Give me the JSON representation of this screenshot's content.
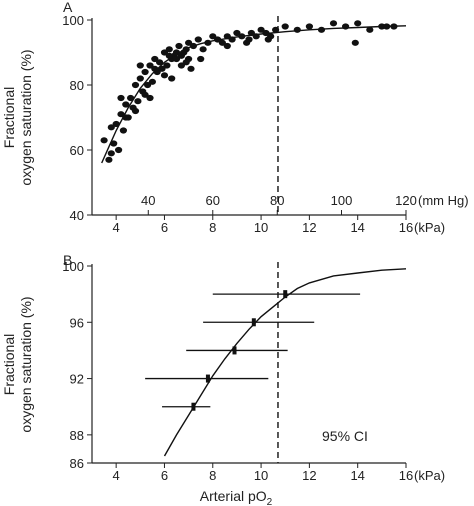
{
  "chart_data": [
    {
      "panel": "A",
      "type": "scatter",
      "ylabel_lines": [
        "Fractional",
        "oxygen saturation (%)"
      ],
      "ylim": [
        40,
        100
      ],
      "yticks": [
        40,
        60,
        80,
        100
      ],
      "xlim_kpa": [
        3,
        16
      ],
      "xticks_kpa": [
        4,
        6,
        8,
        10,
        12,
        14,
        16
      ],
      "xunit_kpa": "(kPa)",
      "mmhg_ticks": [
        {
          "label": "40",
          "kpa": 5.33
        },
        {
          "label": "60",
          "kpa": 8.0
        },
        {
          "label": "80",
          "kpa": 10.67
        },
        {
          "label": "100",
          "kpa": 13.33
        },
        {
          "label": "120",
          "kpa": 16.0
        }
      ],
      "mmhg_unit": "(mm Hg)",
      "reference_line_kpa": 10.7,
      "curve": {
        "x": [
          3.4,
          3.7,
          4.0,
          4.5,
          5.0,
          5.5,
          6.0,
          6.5,
          7.0,
          7.5,
          8.0,
          9.0,
          10.0,
          11.0,
          12.0,
          13.0,
          14.0,
          15.0,
          16.0
        ],
        "y": [
          56,
          61,
          66,
          73,
          79,
          83.5,
          87,
          89.5,
          91.5,
          92.7,
          93.6,
          94.8,
          95.7,
          96.4,
          97.0,
          97.4,
          97.7,
          98.0,
          98.2
        ]
      },
      "points": {
        "x": [
          3.5,
          3.7,
          3.8,
          3.9,
          4.0,
          4.1,
          4.2,
          4.3,
          4.4,
          4.5,
          4.6,
          4.7,
          4.8,
          4.9,
          5.0,
          5.1,
          5.2,
          5.3,
          5.4,
          5.5,
          5.6,
          5.7,
          5.8,
          5.9,
          6.0,
          6.1,
          6.2,
          6.3,
          6.4,
          6.5,
          6.6,
          6.7,
          6.8,
          6.9,
          7.0,
          7.2,
          7.4,
          7.6,
          7.8,
          8.0,
          8.2,
          8.4,
          8.6,
          8.8,
          9.0,
          9.2,
          9.4,
          9.6,
          9.8,
          10.0,
          10.2,
          10.4,
          10.6,
          11.0,
          11.5,
          12.0,
          12.5,
          13.0,
          13.5,
          14.0,
          14.5,
          15.0,
          15.5,
          3.8,
          4.4,
          4.8,
          5.2,
          5.6,
          6.0,
          6.3,
          6.7,
          7.1,
          7.5,
          4.2,
          5.0,
          5.4,
          6.2,
          7.0,
          6.9,
          8.6,
          9.5,
          10.3,
          13.9,
          15.2,
          6.5
        ],
        "y": [
          63,
          57,
          67,
          62,
          68,
          60,
          71,
          66,
          74,
          70,
          76,
          73,
          80,
          75,
          82,
          78,
          84,
          80,
          86,
          81,
          88,
          84,
          87,
          85,
          90,
          86,
          91,
          88,
          89,
          90,
          92,
          89,
          90,
          91,
          93,
          92,
          94,
          91,
          93,
          95,
          94,
          93,
          95,
          94,
          96,
          95,
          93,
          96,
          95,
          97,
          96,
          95,
          97,
          98,
          97,
          98,
          97,
          99,
          98,
          99,
          97,
          98,
          98,
          59,
          70,
          72,
          77,
          85,
          83,
          82,
          86,
          85,
          88,
          76,
          86,
          76,
          89,
          88,
          87,
          92,
          94,
          94,
          93,
          98,
          88
        ]
      }
    },
    {
      "panel": "B",
      "type": "scatter",
      "ylabel_lines": [
        "Fractional",
        "oxygen saturation (%)"
      ],
      "ylim": [
        86,
        100
      ],
      "yticks": [
        86,
        88,
        92,
        96,
        100
      ],
      "xlim_kpa": [
        3,
        16
      ],
      "xticks_kpa": [
        4,
        6,
        8,
        10,
        12,
        14,
        16
      ],
      "xunit_kpa": "(kPa)",
      "xlabel_main": "Arterial pO",
      "xlabel_sub": "2",
      "reference_line_kpa": 10.7,
      "annotation": "95% CI",
      "curve": {
        "x": [
          6.0,
          6.5,
          7.0,
          7.5,
          8.0,
          8.5,
          9.0,
          9.5,
          10.0,
          10.5,
          11.0,
          11.5,
          12.0,
          13.0,
          14.0,
          15.0,
          16.0
        ],
        "y": [
          86.5,
          88.0,
          89.4,
          90.8,
          92.2,
          93.4,
          94.5,
          95.5,
          96.4,
          97.1,
          97.8,
          98.4,
          98.8,
          99.3,
          99.5,
          99.7,
          99.8
        ]
      },
      "means_with_ci": [
        {
          "x": 7.2,
          "y": 90.0,
          "lo": 5.9,
          "hi": 7.9
        },
        {
          "x": 7.8,
          "y": 92.0,
          "lo": 5.2,
          "hi": 10.3
        },
        {
          "x": 8.9,
          "y": 94.0,
          "lo": 6.9,
          "hi": 11.1
        },
        {
          "x": 9.7,
          "y": 96.0,
          "lo": 7.6,
          "hi": 12.2
        },
        {
          "x": 11.0,
          "y": 98.0,
          "lo": 8.0,
          "hi": 14.1
        }
      ]
    }
  ]
}
